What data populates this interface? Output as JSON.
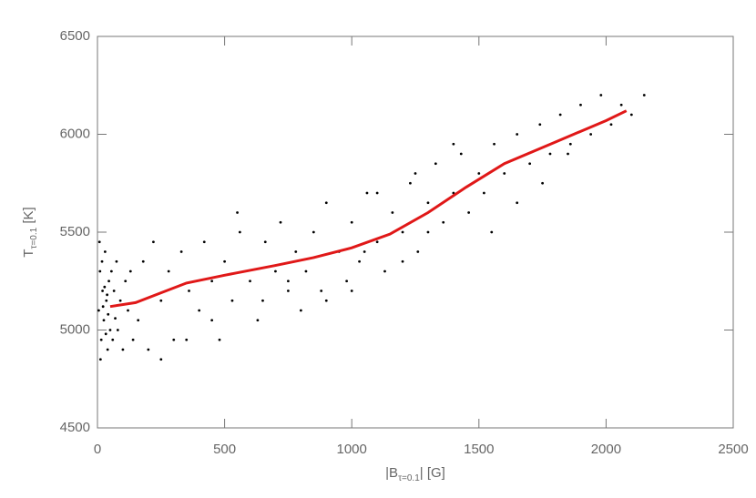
{
  "chart_data": {
    "type": "scatter",
    "xlabel": {
      "main": "|B",
      "sub": "τ=0.1",
      "end": "| [G]"
    },
    "ylabel": {
      "main": "T",
      "sub": "τ=0.1",
      "end": " [K]"
    },
    "xlim": [
      0,
      2500
    ],
    "xticks": [
      0,
      500,
      1000,
      1500,
      2000,
      2500
    ],
    "ylim": [
      4500,
      6500
    ],
    "yticks": [
      4500,
      5000,
      5500,
      6000,
      6500
    ],
    "series": [
      {
        "type": "scatter",
        "color": "#000000",
        "x": [
          5,
          10,
          15,
          20,
          25,
          30,
          35,
          40,
          45,
          50,
          8,
          12,
          18,
          22,
          28,
          33,
          38,
          42,
          55,
          60,
          65,
          70,
          75,
          80,
          90,
          100,
          110,
          120,
          130,
          140,
          160,
          180,
          200,
          220,
          250,
          280,
          300,
          330,
          360,
          400,
          420,
          450,
          480,
          500,
          530,
          560,
          600,
          630,
          660,
          700,
          720,
          750,
          780,
          800,
          250,
          350,
          450,
          550,
          650,
          750,
          820,
          850,
          880,
          900,
          950,
          980,
          1000,
          1030,
          1060,
          1100,
          1130,
          1160,
          1200,
          1230,
          1260,
          1300,
          1330,
          1360,
          1400,
          1430,
          1460,
          1500,
          900,
          1000,
          1100,
          1200,
          1300,
          1400,
          1050,
          1250,
          1520,
          1560,
          1600,
          1650,
          1700,
          1740,
          1780,
          1820,
          1860,
          1900,
          1940,
          1980,
          2020,
          2060,
          2100,
          2150,
          1650,
          1750,
          1850,
          1550
        ],
        "y": [
          5100,
          5300,
          4950,
          5200,
          5050,
          5400,
          5150,
          4900,
          5250,
          5000,
          5450,
          4850,
          5350,
          5120,
          5220,
          4980,
          5180,
          5080,
          5300,
          4950,
          5200,
          5060,
          5350,
          5000,
          5150,
          4900,
          5250,
          5100,
          5300,
          4950,
          5050,
          5350,
          4900,
          5450,
          5150,
          5300,
          4950,
          5400,
          5200,
          5100,
          5450,
          5250,
          4950,
          5350,
          5150,
          5500,
          5250,
          5050,
          5450,
          5300,
          5550,
          5200,
          5400,
          5100,
          4850,
          4950,
          5050,
          5600,
          5150,
          5250,
          5300,
          5500,
          5200,
          5650,
          5400,
          5250,
          5550,
          5350,
          5700,
          5450,
          5300,
          5600,
          5500,
          5750,
          5400,
          5650,
          5850,
          5550,
          5700,
          5900,
          5600,
          5800,
          5150,
          5200,
          5700,
          5350,
          5500,
          5950,
          5400,
          5800,
          5700,
          5950,
          5800,
          6000,
          5850,
          6050,
          5900,
          6100,
          5950,
          6150,
          6000,
          6200,
          6050,
          6150,
          6100,
          6200,
          5650,
          5750,
          5900,
          5500
        ]
      },
      {
        "type": "line",
        "color": "#e01818",
        "x": [
          50,
          150,
          250,
          350,
          500,
          700,
          850,
          1000,
          1150,
          1300,
          1450,
          1600,
          1800,
          2000,
          2080
        ],
        "y": [
          5120,
          5140,
          5190,
          5240,
          5280,
          5330,
          5370,
          5420,
          5490,
          5600,
          5730,
          5850,
          5960,
          6070,
          6120
        ]
      }
    ]
  }
}
